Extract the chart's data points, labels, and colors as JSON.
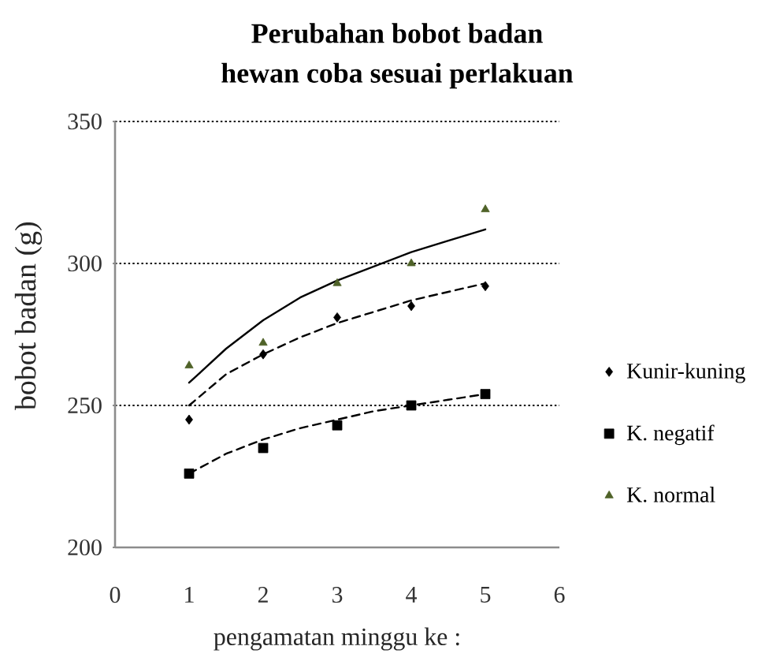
{
  "chart_data": {
    "type": "scatter",
    "title": "Perubahan bobot badan",
    "subtitle": "hewan coba sesuai perlakuan",
    "xlabel": "pengamatan minggu ke :",
    "ylabel": "bobot badan (g)",
    "xlim": [
      0,
      6
    ],
    "xticks": [
      0,
      1,
      2,
      3,
      4,
      5,
      6
    ],
    "ylim": [
      200,
      350
    ],
    "yticks": [
      200,
      250,
      300,
      350
    ],
    "grid": "y",
    "legend": "right",
    "series": [
      {
        "name": "Kunir-kuning",
        "marker": "diamond",
        "color": "#000000",
        "x": [
          1,
          2,
          3,
          4,
          5
        ],
        "values": [
          245,
          268,
          281,
          285,
          292
        ]
      },
      {
        "name": "K. negatif",
        "marker": "square",
        "color": "#000000",
        "x": [
          1,
          2,
          3,
          4,
          5
        ],
        "values": [
          226,
          235,
          243,
          250,
          254
        ]
      },
      {
        "name": "K. normal",
        "marker": "triangle",
        "color": "#4f6228",
        "x": [
          1,
          2,
          3,
          4,
          5
        ],
        "values": [
          264,
          272,
          293,
          300,
          319
        ]
      },
      {
        "type": "line",
        "line_style": "dashed",
        "color": "#000000",
        "x": [
          1,
          1.5,
          2,
          2.5,
          3,
          3.5,
          4,
          4.5,
          5
        ],
        "values": [
          250,
          261,
          268,
          274,
          279,
          283,
          287,
          290,
          293
        ]
      },
      {
        "type": "line",
        "line_style": "dashed",
        "color": "#000000",
        "x": [
          1,
          1.5,
          2,
          2.5,
          3,
          3.5,
          4,
          4.5,
          5
        ],
        "values": [
          226,
          233,
          238,
          242,
          245,
          248,
          250,
          252,
          254
        ]
      },
      {
        "type": "line",
        "line_style": "solid",
        "color": "#000000",
        "x": [
          1,
          1.5,
          2,
          2.5,
          3,
          3.5,
          4,
          4.5,
          5
        ],
        "values": [
          258,
          270,
          280,
          288,
          294,
          299,
          304,
          308,
          312
        ]
      }
    ]
  }
}
